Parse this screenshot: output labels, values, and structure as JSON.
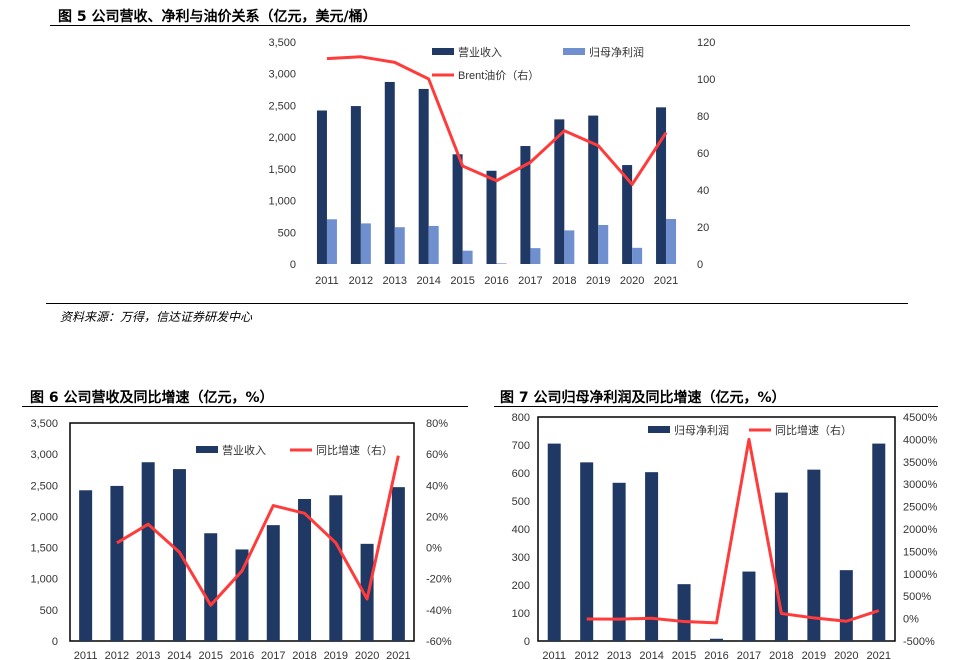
{
  "figure5": {
    "title": "图 5 公司营收、净利与油价关系（亿元，美元/桶）",
    "source": "资料来源：万得，信达证券研发中心",
    "chart_data": {
      "type": "bar",
      "categories": [
        "2011",
        "2012",
        "2013",
        "2014",
        "2015",
        "2016",
        "2017",
        "2018",
        "2019",
        "2020",
        "2021"
      ],
      "ylim": [
        0,
        3500
      ],
      "y_ticks": [
        "0",
        "500",
        "1,000",
        "1,500",
        "2,000",
        "2,500",
        "3,000",
        "3,500"
      ],
      "y2lim": [
        0,
        120
      ],
      "y2_ticks": [
        "0",
        "20",
        "40",
        "60",
        "80",
        "100",
        "120"
      ],
      "series": [
        {
          "name": "营业收入",
          "kind": "bar",
          "axis": "left",
          "color": "#1f3864",
          "values": [
            2420,
            2490,
            2870,
            2760,
            1730,
            1470,
            1860,
            2280,
            2340,
            1560,
            2470
          ]
        },
        {
          "name": "归母净利润",
          "kind": "bar",
          "axis": "left",
          "color": "#6f8fcf",
          "values": [
            705,
            640,
            580,
            600,
            210,
            10,
            250,
            530,
            615,
            255,
            710
          ]
        },
        {
          "name": "Brent油价（右）",
          "kind": "line",
          "axis": "right",
          "color": "#ff3b3b",
          "values": [
            111,
            112,
            109,
            100,
            53,
            45,
            55,
            72,
            64,
            43,
            71
          ]
        }
      ],
      "legend_position": "top-right"
    }
  },
  "figure6": {
    "title": "图 6 公司营收及同比增速（亿元，%）",
    "chart_data": {
      "type": "bar",
      "categories": [
        "2011",
        "2012",
        "2013",
        "2014",
        "2015",
        "2016",
        "2017",
        "2018",
        "2019",
        "2020",
        "2021"
      ],
      "ylim": [
        0,
        3500
      ],
      "y_ticks": [
        "0",
        "500",
        "1,000",
        "1,500",
        "2,000",
        "2,500",
        "3,000",
        "3,500"
      ],
      "y2lim": [
        -60,
        80
      ],
      "y2_ticks": [
        "-60%",
        "-40%",
        "-20%",
        "0%",
        "20%",
        "40%",
        "60%",
        "80%"
      ],
      "series": [
        {
          "name": "营业收入",
          "kind": "bar",
          "axis": "left",
          "color": "#1f3864",
          "values": [
            2420,
            2490,
            2870,
            2760,
            1730,
            1470,
            1860,
            2280,
            2340,
            1560,
            2470
          ]
        },
        {
          "name": "同比增速（右）",
          "kind": "line",
          "axis": "right",
          "color": "#ff3b3b",
          "values": [
            null,
            3,
            15,
            -3,
            -37,
            -15,
            27,
            22,
            3,
            -33,
            59
          ]
        }
      ],
      "legend_position": "top-right"
    }
  },
  "figure7": {
    "title": "图 7 公司归母净利润及同比增速（亿元，%）",
    "chart_data": {
      "type": "bar",
      "categories": [
        "2011",
        "2012",
        "2013",
        "2014",
        "2015",
        "2016",
        "2017",
        "2018",
        "2019",
        "2020",
        "2021"
      ],
      "ylim": [
        0,
        800
      ],
      "y_ticks": [
        "0",
        "100",
        "200",
        "300",
        "400",
        "500",
        "600",
        "700",
        "800"
      ],
      "y2lim": [
        -500,
        4500
      ],
      "y2_ticks": [
        "-500%",
        "0%",
        "500%",
        "1000%",
        "1500%",
        "2000%",
        "2500%",
        "3000%",
        "3500%",
        "4000%",
        "4500%"
      ],
      "series": [
        {
          "name": "归母净利润",
          "kind": "bar",
          "axis": "left",
          "color": "#1f3864",
          "values": [
            705,
            638,
            565,
            603,
            203,
            8,
            248,
            530,
            612,
            253,
            705
          ]
        },
        {
          "name": "同比增速（右）",
          "kind": "line",
          "axis": "right",
          "color": "#ff3b3b",
          "values": [
            null,
            -10,
            -11,
            7,
            -66,
            -96,
            4000,
            114,
            15,
            -59,
            179
          ]
        }
      ],
      "legend_position": "top-right"
    }
  }
}
